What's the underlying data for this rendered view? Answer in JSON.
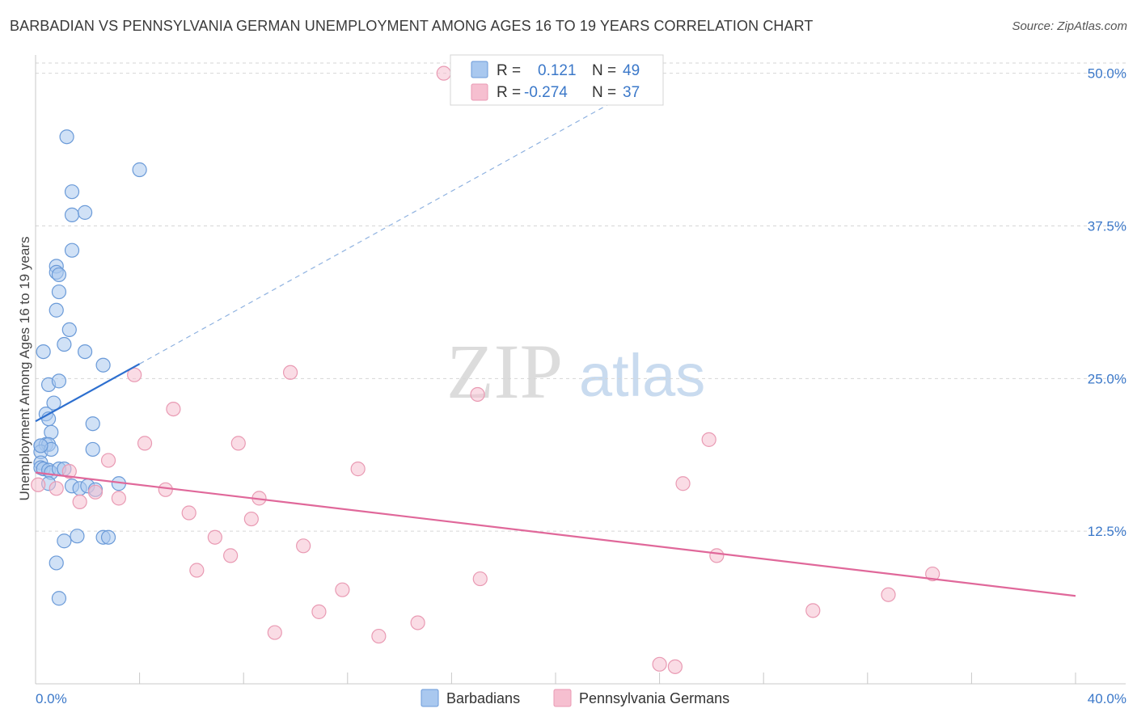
{
  "header": {
    "title": "BARBADIAN VS PENNSYLVANIA GERMAN UNEMPLOYMENT AMONG AGES 16 TO 19 YEARS CORRELATION CHART",
    "source": "Source: ZipAtlas.com"
  },
  "watermark": {
    "zip": "ZIP",
    "atlas": "atlas"
  },
  "colors": {
    "blue_fill": "#a9c8ef",
    "blue_stroke": "#6a9ad8",
    "blue_line": "#2d6fcf",
    "pink_fill": "#f6bfd0",
    "pink_stroke": "#e99ab3",
    "pink_line": "#e0689a",
    "tick_text": "#3b78c9",
    "grid": "#d6d6d6"
  },
  "legend": {
    "rows": [
      {
        "r_label": "R =",
        "r_value": "0.121",
        "n_label": "N =",
        "n_value": "49",
        "color": "#a9c8ef"
      },
      {
        "r_label": "R =",
        "r_value": "-0.274",
        "n_label": "N =",
        "n_value": "37",
        "color": "#f6bfd0"
      }
    ]
  },
  "chart_data": {
    "type": "scatter",
    "title": "BARBADIAN VS PENNSYLVANIA GERMAN UNEMPLOYMENT AMONG AGES 16 TO 19 YEARS CORRELATION CHART",
    "xlabel": "",
    "ylabel": "Unemployment Among Ages 16 to 19 years",
    "xlim": [
      0,
      40
    ],
    "ylim": [
      0,
      51.5
    ],
    "x_tick_labels": [
      "0.0%",
      "40.0%"
    ],
    "y_ticks": [
      {
        "value": 12.5,
        "label": "12.5%"
      },
      {
        "value": 25.0,
        "label": "25.0%"
      },
      {
        "value": 37.5,
        "label": "37.5%"
      },
      {
        "value": 50.0,
        "label": "50.0%"
      }
    ],
    "series": [
      {
        "name": "Barbadians",
        "color": "#a9c8ef",
        "trend": {
          "x0": 0.0,
          "y0": 21.5,
          "x1": 4.0,
          "y1": 26.2,
          "x_dash_end": 22.5,
          "y_dash_end": 48.0
        },
        "points": [
          [
            1.2,
            44.8
          ],
          [
            4.0,
            42.1
          ],
          [
            1.4,
            40.3
          ],
          [
            1.4,
            38.4
          ],
          [
            1.9,
            38.6
          ],
          [
            1.4,
            35.5
          ],
          [
            0.8,
            34.2
          ],
          [
            0.8,
            33.7
          ],
          [
            0.9,
            33.5
          ],
          [
            0.9,
            32.1
          ],
          [
            0.8,
            30.6
          ],
          [
            1.3,
            29.0
          ],
          [
            1.1,
            27.8
          ],
          [
            0.3,
            27.2
          ],
          [
            1.9,
            27.2
          ],
          [
            2.6,
            26.1
          ],
          [
            0.5,
            24.5
          ],
          [
            0.9,
            24.8
          ],
          [
            0.7,
            23.0
          ],
          [
            0.4,
            22.1
          ],
          [
            0.5,
            21.7
          ],
          [
            2.2,
            21.3
          ],
          [
            0.6,
            20.6
          ],
          [
            0.2,
            19.5
          ],
          [
            0.4,
            19.6
          ],
          [
            0.5,
            19.6
          ],
          [
            0.2,
            19.0
          ],
          [
            0.6,
            19.2
          ],
          [
            2.2,
            19.2
          ],
          [
            0.2,
            18.1
          ],
          [
            0.2,
            17.7
          ],
          [
            0.3,
            17.6
          ],
          [
            0.5,
            17.5
          ],
          [
            0.6,
            17.3
          ],
          [
            0.9,
            17.6
          ],
          [
            1.1,
            17.6
          ],
          [
            0.5,
            16.4
          ],
          [
            1.4,
            16.2
          ],
          [
            1.7,
            16.0
          ],
          [
            2.0,
            16.2
          ],
          [
            2.3,
            15.9
          ],
          [
            3.2,
            16.4
          ],
          [
            1.6,
            12.1
          ],
          [
            1.1,
            11.7
          ],
          [
            2.6,
            12.0
          ],
          [
            2.8,
            12.0
          ],
          [
            0.8,
            9.9
          ],
          [
            0.9,
            7.0
          ],
          [
            0.2,
            19.5
          ]
        ]
      },
      {
        "name": "Pennsylvania Germans",
        "color": "#f6bfd0",
        "trend": {
          "x0": 0.0,
          "y0": 17.3,
          "x1": 40.0,
          "y1": 7.2
        },
        "points": [
          [
            15.7,
            50.0
          ],
          [
            3.8,
            25.3
          ],
          [
            9.8,
            25.5
          ],
          [
            17.0,
            23.7
          ],
          [
            5.3,
            22.5
          ],
          [
            4.2,
            19.7
          ],
          [
            7.8,
            19.7
          ],
          [
            25.9,
            20.0
          ],
          [
            2.8,
            18.3
          ],
          [
            12.4,
            17.6
          ],
          [
            1.3,
            17.4
          ],
          [
            0.1,
            16.3
          ],
          [
            0.8,
            16.0
          ],
          [
            2.3,
            15.7
          ],
          [
            5.0,
            15.9
          ],
          [
            24.9,
            16.4
          ],
          [
            1.7,
            14.9
          ],
          [
            3.2,
            15.2
          ],
          [
            8.6,
            15.2
          ],
          [
            5.9,
            14.0
          ],
          [
            8.3,
            13.5
          ],
          [
            6.9,
            12.0
          ],
          [
            10.3,
            11.3
          ],
          [
            7.5,
            10.5
          ],
          [
            26.2,
            10.5
          ],
          [
            6.2,
            9.3
          ],
          [
            17.1,
            8.6
          ],
          [
            11.8,
            7.7
          ],
          [
            10.9,
            5.9
          ],
          [
            32.8,
            7.3
          ],
          [
            34.5,
            9.0
          ],
          [
            29.9,
            6.0
          ],
          [
            14.7,
            5.0
          ],
          [
            9.2,
            4.2
          ],
          [
            13.2,
            3.9
          ],
          [
            24.0,
            1.6
          ],
          [
            24.6,
            1.4
          ]
        ]
      }
    ]
  }
}
